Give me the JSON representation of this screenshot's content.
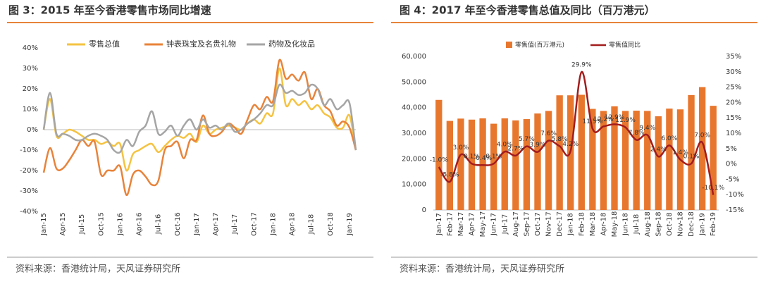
{
  "chart_data": [
    {
      "type": "line",
      "title": "图 3：2015 年至今香港零售市场同比增速",
      "source": "资料来源：香港统计局，天风证券研究所",
      "categories": [
        "Jan-15",
        null,
        null,
        "Apr-15",
        null,
        null,
        "Jul-15",
        null,
        null,
        "Oct-15",
        null,
        null,
        "Jan-16",
        null,
        null,
        "Apr-16",
        null,
        null,
        "Jul-16",
        null,
        null,
        "Oct-16",
        null,
        null,
        "Jan-17",
        null,
        null,
        "Apr-17",
        null,
        null,
        "Jul-17",
        null,
        null,
        "Oct-17",
        null,
        null,
        "Jan-18",
        null,
        null,
        "Apr-18",
        null,
        null,
        "Jul-18",
        null,
        null,
        "Oct-18",
        null,
        null,
        "Jan-19",
        null
      ],
      "series": [
        {
          "name": "零售总值",
          "color": "#f5c342",
          "values": [
            0,
            15,
            -3,
            -2,
            0,
            -1,
            -3,
            -5,
            -5,
            -7,
            -6,
            -8,
            -7,
            -20,
            -12,
            -10,
            -8,
            -7,
            -11,
            -8,
            -5,
            -3,
            -4,
            -2,
            -6,
            2,
            -2,
            0,
            1,
            2,
            1,
            0,
            3,
            5,
            3,
            8,
            8,
            30,
            12,
            15,
            12,
            14,
            10,
            12,
            8,
            6,
            1,
            1,
            7,
            -10
          ]
        },
        {
          "name": "钟表珠宝及名贵礼物",
          "color": "#e8833a",
          "values": [
            -21,
            -9,
            -19,
            -19,
            -15,
            -10,
            -5,
            -8,
            -6,
            -22,
            -20,
            -20,
            -18,
            -32,
            -22,
            -20,
            -23,
            -27,
            -25,
            -10,
            -8,
            -6,
            -14,
            -5,
            -5,
            7,
            -2,
            -3,
            -1,
            3,
            1,
            -2,
            5,
            12,
            10,
            16,
            14,
            34,
            25,
            27,
            24,
            28,
            15,
            20,
            12,
            9,
            2,
            4,
            1,
            -10
          ]
        },
        {
          "name": "药物及化妆品",
          "color": "#a5a5a5",
          "values": [
            0,
            18,
            -2,
            -2,
            -3,
            -5,
            -5,
            -3,
            -2,
            -3,
            -5,
            -10,
            -11,
            -5,
            -8,
            -1,
            2,
            9,
            -2,
            -1,
            2,
            -3,
            2,
            5,
            0,
            5,
            1,
            2,
            0,
            3,
            -1,
            0,
            3,
            5,
            8,
            12,
            12,
            22,
            18,
            19,
            17,
            18,
            22,
            20,
            12,
            15,
            10,
            12,
            13,
            -10
          ]
        }
      ],
      "ylim": [
        -40,
        40
      ],
      "yticks": [
        {
          "value": -40,
          "label": "-40%"
        },
        {
          "value": -30,
          "label": "-30%"
        },
        {
          "value": -20,
          "label": "-20%"
        },
        {
          "value": -10,
          "label": "-10%"
        },
        {
          "value": 0,
          "label": "0%"
        },
        {
          "value": 10,
          "label": "10%"
        },
        {
          "value": 20,
          "label": "20%"
        },
        {
          "value": 30,
          "label": "30%"
        },
        {
          "value": 40,
          "label": "40%"
        }
      ]
    },
    {
      "type": "combo",
      "title": "图 4：2017 年至今香港零售总值及同比（百万港元）",
      "source": "资料来源：香港统计局，天风证券研究所",
      "categories": [
        "Jan-17",
        "Feb-17",
        "Mar-17",
        "Apr-17",
        "May-17",
        "Jun-17",
        "Jul-17",
        "Aug-17",
        "Sep-17",
        "Oct-17",
        "Nov-17",
        "Dec-17",
        "Jan-18",
        "Feb-18",
        "Mar-18",
        "Apr-18",
        "May-18",
        "Jun-18",
        "Jul-18",
        "Aug-18",
        "Sep-18",
        "Oct-18",
        "Nov-18",
        "Dec-18",
        "Jan-19",
        "Feb-19"
      ],
      "series": [
        {
          "name": "零售值(百万港元)",
          "color": "#e8772e",
          "values": [
            43000,
            34800,
            35700,
            35300,
            35800,
            33700,
            35800,
            35000,
            35500,
            37700,
            38700,
            44800,
            44800,
            45000,
            39500,
            38700,
            40500,
            38700,
            38800,
            38700,
            36600,
            39600,
            39300,
            44900,
            48000,
            40700
          ]
        },
        {
          "name": "零售值同比",
          "color": "#a31d1d",
          "axis": "y2",
          "values": [
            -1.0,
            -5.8,
            3.0,
            0.1,
            -0.4,
            0.1,
            4.0,
            2.7,
            5.7,
            3.9,
            7.6,
            5.8,
            4.2,
            29.9,
            11.5,
            12.2,
            12.9,
            11.9,
            7.8,
            9.4,
            2.4,
            6.0,
            1.4,
            0.1,
            7.0,
            -10.1
          ],
          "value_labels": [
            "-1.0%",
            "-5.8%",
            "3.0%",
            "0.1%",
            "-0.4%",
            "0.1%",
            "4.0%",
            "2.7%",
            "5.7%",
            "3.9%",
            "7.6%",
            "5.8%",
            "4.2%",
            "29.9%",
            "11.5%",
            "12.2%",
            "12.9%",
            "11.9%",
            "7.8%",
            "9.4%",
            "2.4%",
            "6.0%",
            "1.4%",
            "0.1%",
            "7.0%",
            "-10.1%"
          ]
        }
      ],
      "ylim": [
        0,
        60000
      ],
      "yticks": [
        0,
        {
          "value": 10000,
          "label": "10,000"
        },
        {
          "value": 20000,
          "label": "20,000"
        },
        {
          "value": 30000,
          "label": "30,000"
        },
        {
          "value": 40000,
          "label": "40,000"
        },
        {
          "value": 50000,
          "label": "50,000"
        },
        {
          "value": 60000,
          "label": "60,000"
        }
      ],
      "y2lim": [
        -15,
        35
      ],
      "y2ticks": [
        {
          "value": -15,
          "label": "-15%"
        },
        {
          "value": -10,
          "label": "-10%"
        },
        {
          "value": -5,
          "label": "-5%"
        },
        {
          "value": 0,
          "label": "0%"
        },
        {
          "value": 5,
          "label": "5%"
        },
        {
          "value": 10,
          "label": "10%"
        },
        {
          "value": 15,
          "label": "15%"
        },
        {
          "value": 20,
          "label": "20%"
        },
        {
          "value": 25,
          "label": "25%"
        },
        {
          "value": 30,
          "label": "30%"
        },
        {
          "value": 35,
          "label": "35%"
        }
      ]
    }
  ]
}
